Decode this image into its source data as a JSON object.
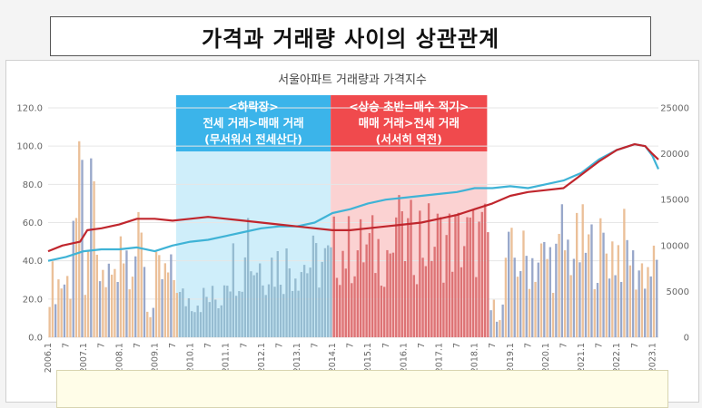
{
  "headline": "가격과 거래량 사이의 상관관계",
  "colors": {
    "price_line": "#3fb3d6",
    "volume_line": "#c0262d",
    "bar_orange": "#e9b98e",
    "bar_blue": "#8e9ec4",
    "down_zone": "#3bb4ea",
    "up_zone": "#f04a4d",
    "band_blue_fill": "#cfeefa",
    "band_red_fill": "#fbd2d2",
    "bar_in_blue": "#8fb6cc",
    "bar_in_red": "#d9686a"
  },
  "annotations": {
    "down": [
      "<하락장>",
      "전세 거래>매매 거래",
      "(무서워서 전세산다)"
    ],
    "up": [
      "<상승 초반=매수 적기>",
      "매매 거래>전세 거래",
      "(서서히 역전)"
    ]
  },
  "chart_data": {
    "type": "bar",
    "title": "서울아파트 거래량과 가격지수",
    "x_ticks": [
      "2006.1",
      "7",
      "2007.1",
      "7",
      "2008.1",
      "7",
      "2009.1",
      "7",
      "2010.1",
      "7",
      "2011.1",
      "7",
      "2012.1",
      "7",
      "2013.1",
      "7",
      "2014.1",
      "7",
      "2015.1",
      "7",
      "2016.1",
      "7",
      "2017.1",
      "7",
      "2018.1",
      "7",
      "2019.1",
      "7",
      "2020.1",
      "7",
      "2021.1",
      "7",
      "2022.1",
      "7",
      "2023.1"
    ],
    "y_left": {
      "min": 0,
      "max": 120,
      "ticks": [
        "0.0",
        "20.0",
        "40.0",
        "60.0",
        "80.0",
        "100.0",
        "120.0"
      ]
    },
    "y_right": {
      "min": 0,
      "max": 25000,
      "ticks": [
        "0",
        "5000",
        "10000",
        "15000",
        "20000",
        "25000"
      ]
    },
    "x_range": [
      2006.0,
      2023.17
    ],
    "highlight_periods": [
      {
        "name": "down",
        "start": 2009.6,
        "end": 2013.95
      },
      {
        "name": "up",
        "start": 2013.95,
        "end": 2018.35
      }
    ],
    "series": [
      {
        "kind": "line",
        "axis": "left",
        "color_key": "price_line",
        "points": [
          [
            2006.0,
            40
          ],
          [
            2006.5,
            42
          ],
          [
            2007.0,
            45
          ],
          [
            2007.5,
            46
          ],
          [
            2008.0,
            46
          ],
          [
            2008.5,
            47
          ],
          [
            2009.0,
            45
          ],
          [
            2009.5,
            48
          ],
          [
            2010.0,
            50
          ],
          [
            2010.5,
            51
          ],
          [
            2011.0,
            53
          ],
          [
            2011.5,
            55
          ],
          [
            2012.0,
            57
          ],
          [
            2012.5,
            58
          ],
          [
            2013.0,
            58
          ],
          [
            2013.5,
            60
          ],
          [
            2014.0,
            65
          ],
          [
            2014.5,
            67
          ],
          [
            2015.0,
            70
          ],
          [
            2015.5,
            72
          ],
          [
            2016.0,
            73
          ],
          [
            2016.5,
            74
          ],
          [
            2017.0,
            75
          ],
          [
            2017.5,
            76
          ],
          [
            2018.0,
            78
          ],
          [
            2018.5,
            78
          ],
          [
            2019.0,
            79
          ],
          [
            2019.5,
            78
          ],
          [
            2020.0,
            80
          ],
          [
            2020.5,
            82
          ],
          [
            2021.0,
            86
          ],
          [
            2021.5,
            93
          ],
          [
            2022.0,
            98
          ],
          [
            2022.5,
            101
          ],
          [
            2022.8,
            100
          ],
          [
            2023.0,
            95
          ],
          [
            2023.17,
            88
          ]
        ]
      },
      {
        "kind": "line",
        "axis": "left",
        "color_key": "volume_line",
        "points": [
          [
            2006.0,
            45
          ],
          [
            2006.4,
            48
          ],
          [
            2006.9,
            50
          ],
          [
            2007.1,
            56
          ],
          [
            2007.5,
            57
          ],
          [
            2008.0,
            59
          ],
          [
            2008.5,
            62
          ],
          [
            2009.0,
            62
          ],
          [
            2009.5,
            61
          ],
          [
            2010.0,
            62
          ],
          [
            2010.5,
            63
          ],
          [
            2011.0,
            62
          ],
          [
            2011.5,
            61
          ],
          [
            2012.0,
            60
          ],
          [
            2012.5,
            59
          ],
          [
            2013.0,
            58
          ],
          [
            2013.5,
            57
          ],
          [
            2014.0,
            56
          ],
          [
            2014.5,
            56
          ],
          [
            2015.0,
            57
          ],
          [
            2015.5,
            58
          ],
          [
            2016.0,
            59
          ],
          [
            2016.5,
            60
          ],
          [
            2017.0,
            62
          ],
          [
            2017.5,
            64
          ],
          [
            2018.0,
            67
          ],
          [
            2018.5,
            70
          ],
          [
            2019.0,
            74
          ],
          [
            2019.5,
            76
          ],
          [
            2020.0,
            77
          ],
          [
            2020.5,
            78
          ],
          [
            2021.0,
            85
          ],
          [
            2021.5,
            92
          ],
          [
            2022.0,
            98
          ],
          [
            2022.5,
            101
          ],
          [
            2022.8,
            100
          ],
          [
            2023.0,
            96
          ],
          [
            2023.17,
            93
          ]
        ]
      }
    ]
  }
}
